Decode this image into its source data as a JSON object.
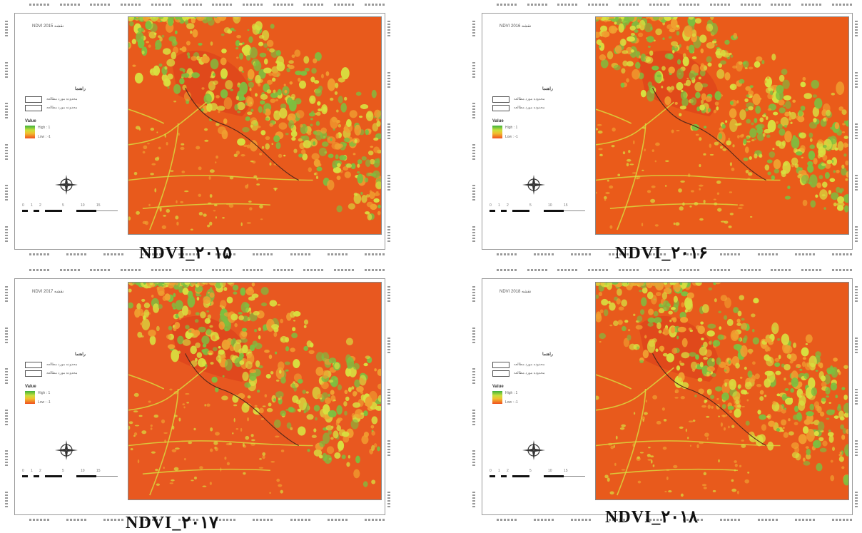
{
  "panels": [
    {
      "map_title": "NDVI 2015 نقشه",
      "legend_title": "راهنما",
      "legend_items": [
        "محدوده مورد مطالعه",
        "محدوده مورد مطالعه"
      ],
      "value_label": "Value",
      "value_high": "High : 1",
      "value_low": "Low : -1",
      "caption": "NDVI_۲۰۱۵",
      "dominant": "#e85a1c"
    },
    {
      "map_title": "NDVI 2016 نقشه",
      "legend_title": "راهنما",
      "legend_items": [
        "محدوده مورد مطالعه",
        "محدوده مورد مطالعه"
      ],
      "value_label": "Value",
      "value_high": "High : 1",
      "value_low": "Low : -1",
      "caption": "NDVI_۲۰۱۶",
      "dominant": "#ea5b1a"
    },
    {
      "map_title": "NDVI 2017 نقشه",
      "legend_title": "راهنما",
      "legend_items": [
        "محدوده مورد مطالعه",
        "محدوده مورد مطالعه"
      ],
      "value_label": "Value",
      "value_high": "High : 1",
      "value_low": "Low : -1",
      "caption": "NDVI_۲۰۱۷",
      "dominant": "#e85820"
    },
    {
      "map_title": "NDVI 2018 نقشه",
      "legend_title": "راهنما",
      "legend_items": [
        "محدوده مورد مطالعه",
        "محدوده مورد مطالعه"
      ],
      "value_label": "Value",
      "value_high": "High : 1",
      "value_low": "Low : -1",
      "caption": "NDVI_۲۰۱۸",
      "dominant": "#e85a1c"
    }
  ],
  "colors": {
    "low": "#e8481a",
    "mid": "#f0a030",
    "high_yellow": "#d8e040",
    "high_green": "#7cc040",
    "frame": "#888888"
  }
}
